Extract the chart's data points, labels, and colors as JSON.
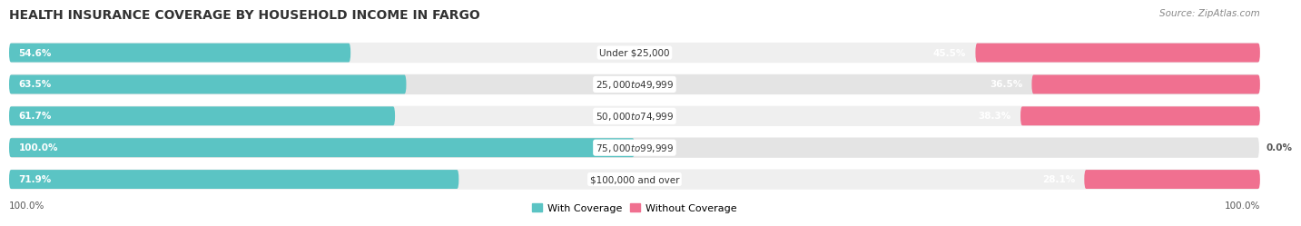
{
  "title": "HEALTH INSURANCE COVERAGE BY HOUSEHOLD INCOME IN FARGO",
  "source": "Source: ZipAtlas.com",
  "categories": [
    "Under $25,000",
    "$25,000 to $49,999",
    "$50,000 to $74,999",
    "$75,000 to $99,999",
    "$100,000 and over"
  ],
  "with_coverage": [
    54.6,
    63.5,
    61.7,
    100.0,
    71.9
  ],
  "without_coverage": [
    45.5,
    36.5,
    38.3,
    0.0,
    28.1
  ],
  "color_with": "#5BC4C4",
  "color_without": "#F07090",
  "color_without_light": "#F8B4C8",
  "row_bg": "#efefef",
  "row_bg_alt": "#e4e4e4",
  "legend_label_with": "With Coverage",
  "legend_label_without": "Without Coverage",
  "x_left_label": "100.0%",
  "x_right_label": "100.0%",
  "title_fontsize": 10,
  "source_fontsize": 7.5,
  "bar_label_fontsize": 7.5,
  "category_fontsize": 7.5,
  "legend_fontsize": 8,
  "axis_label_fontsize": 7.5
}
